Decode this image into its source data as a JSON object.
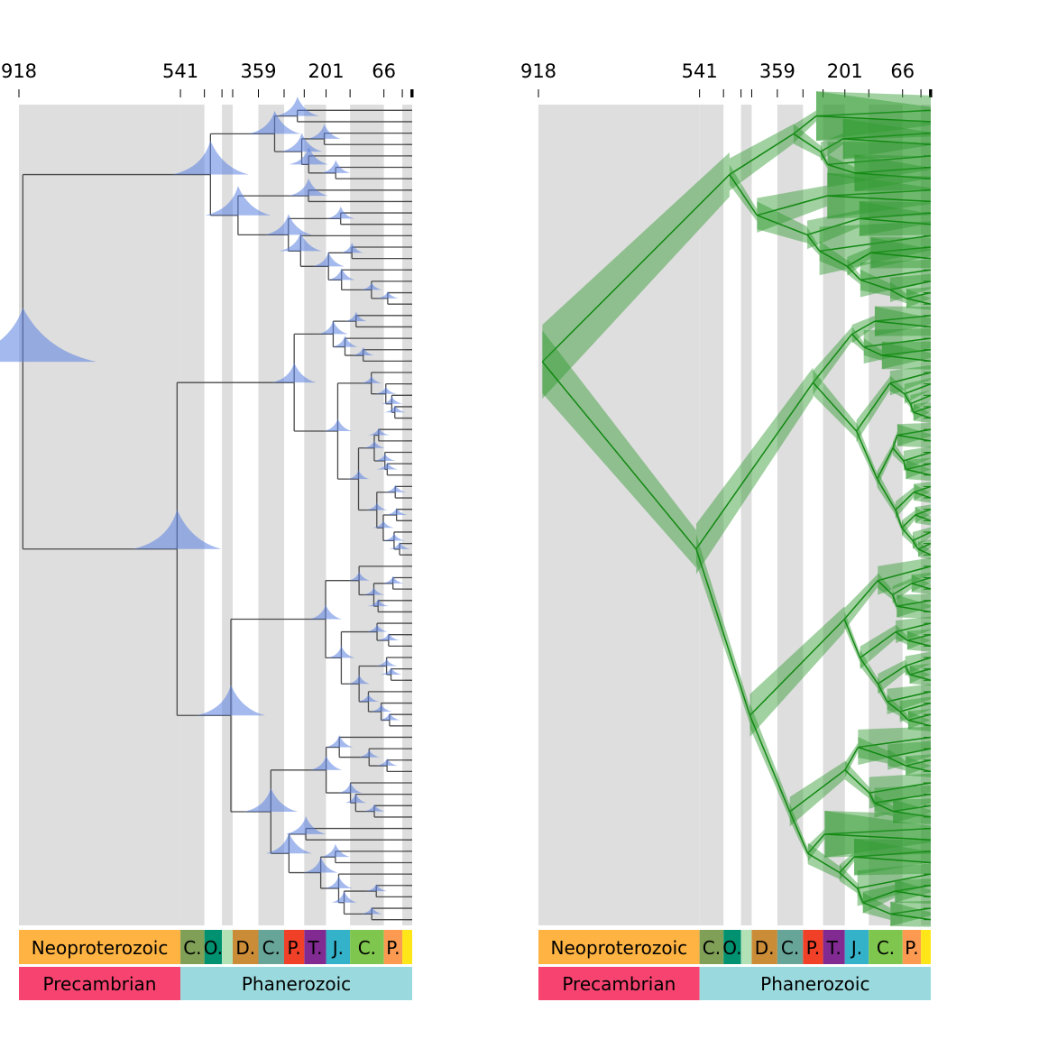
{
  "figure": {
    "panels": [
      {
        "id": "left",
        "style": "density"
      },
      {
        "id": "right",
        "style": "hpd"
      }
    ],
    "axis_max_age": 918,
    "tick_labels": [
      {
        "age": 918,
        "label": "918"
      },
      {
        "age": 541,
        "label": "541"
      },
      {
        "age": 359,
        "label": "359"
      },
      {
        "age": 201,
        "label": "201"
      },
      {
        "age": 66,
        "label": "66"
      }
    ],
    "minor_ticks": [
      918,
      541,
      485,
      444,
      419,
      359,
      299,
      252,
      201,
      145,
      66,
      23,
      3,
      0
    ],
    "periods": [
      {
        "label": "C.",
        "start": 541,
        "end": 485,
        "color": "#7fa056"
      },
      {
        "label": "O.",
        "start": 485,
        "end": 444,
        "color": "#009270"
      },
      {
        "label": "",
        "start": 444,
        "end": 419,
        "color": "#b3e1b6"
      },
      {
        "label": "D.",
        "start": 419,
        "end": 359,
        "color": "#cb8c37"
      },
      {
        "label": "C.",
        "start": 359,
        "end": 299,
        "color": "#67a599"
      },
      {
        "label": "P.",
        "start": 299,
        "end": 252,
        "color": "#f04028"
      },
      {
        "label": "T.",
        "start": 252,
        "end": 201,
        "color": "#812b92"
      },
      {
        "label": "J.",
        "start": 201,
        "end": 145,
        "color": "#34b2c9"
      },
      {
        "label": "C.",
        "start": 145,
        "end": 66,
        "color": "#7fc64e"
      },
      {
        "label": "P.",
        "start": 66,
        "end": 23,
        "color": "#fd9a52"
      },
      {
        "label": "",
        "start": 23,
        "end": 0,
        "color": "#ffe619"
      }
    ],
    "eras": [
      {
        "label": "Neoproterozoic",
        "start": 918,
        "end": 541,
        "color": "#feb342"
      }
    ],
    "eons": [
      {
        "label": "Precambrian",
        "start": 918,
        "end": 541,
        "color": "#f74370"
      },
      {
        "label": "Phanerozoic",
        "start": 541,
        "end": 0,
        "color": "#9ad9dd"
      }
    ],
    "colors": {
      "band": "#dedede",
      "tree_left": "#4a4a4a",
      "density_fill": "#5a7fe0",
      "tree_right": "#118811",
      "hpd_fill": "#2f9a2f"
    },
    "tip_count": 72
  }
}
